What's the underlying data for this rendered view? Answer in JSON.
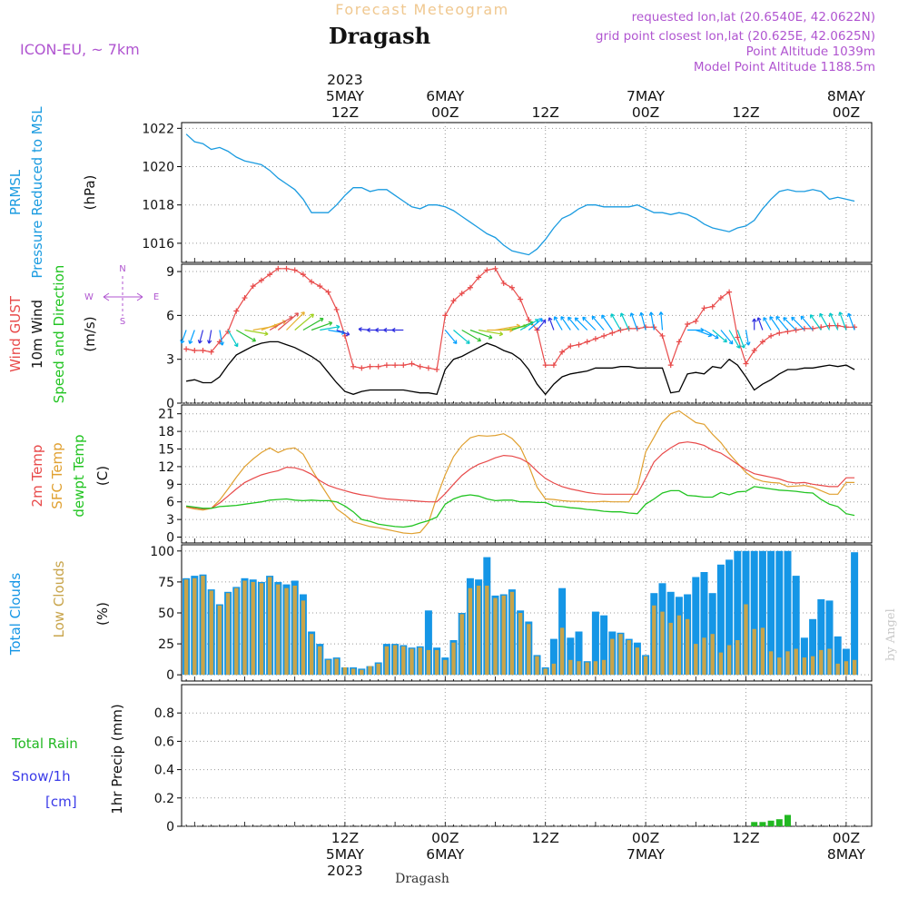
{
  "header": {
    "subtitle": "Forecast Meteogram",
    "location": "Dragash",
    "model": "ICON-EU, ~ 7km",
    "info": [
      "requested lon,lat (20.6540E, 42.0622N)",
      "grid point closest lon,lat (20.625E, 42.0625N)",
      "Point Altitude 1039m",
      "Model Point Altitude 1188.5m"
    ],
    "bottom_name": "Dragash",
    "watermark": "by Angel"
  },
  "colors": {
    "pressure": "#1a9be0",
    "gust": "#e84a4a",
    "wind10": "#000000",
    "dir": "#22c422",
    "t2m": "#e84a4a",
    "sfc": "#e0a030",
    "dew": "#22c422",
    "total_clouds": "#1596e6",
    "low_clouds": "#c8a44a",
    "rain": "#22b822",
    "snow": "#3a3ae8",
    "info": "#b055d0",
    "model": "#b055d0",
    "subtitle": "#f0c890"
  },
  "top_time_labels": [
    {
      "idx": 19,
      "lines": [
        "2023",
        "5MAY",
        "12Z"
      ]
    },
    {
      "idx": 31,
      "lines": [
        "6MAY",
        "00Z"
      ]
    },
    {
      "idx": 43,
      "lines": [
        "12Z"
      ]
    },
    {
      "idx": 55,
      "lines": [
        "7MAY",
        "00Z"
      ]
    },
    {
      "idx": 67,
      "lines": [
        "12Z"
      ]
    },
    {
      "idx": 79,
      "lines": [
        "8MAY",
        "00Z"
      ]
    }
  ],
  "bottom_time_labels": [
    {
      "idx": 19,
      "lines": [
        "12Z",
        "5MAY",
        "2023"
      ]
    },
    {
      "idx": 31,
      "lines": [
        "00Z",
        "6MAY"
      ]
    },
    {
      "idx": 43,
      "lines": [
        "12Z"
      ]
    },
    {
      "idx": 55,
      "lines": [
        "00Z",
        "7MAY"
      ]
    },
    {
      "idx": 67,
      "lines": [
        "12Z"
      ]
    },
    {
      "idx": 79,
      "lines": [
        "00Z",
        "8MAY"
      ]
    }
  ],
  "chart_data": [
    {
      "type": "line",
      "panel": "pressure",
      "left_labels": [
        "PRMSL",
        "Pressure Reduced to MSL"
      ],
      "unit": "(hPa)",
      "ylim": [
        1015,
        1022.3
      ],
      "yticks": [
        1016,
        1018,
        1020,
        1022
      ],
      "x_hours_start": 0,
      "series": [
        {
          "values": [
            1021.7,
            1021.3,
            1021.2,
            1020.9,
            1021.0,
            1020.8,
            1020.5,
            1020.3,
            1020.2,
            1020.1,
            1019.8,
            1019.4,
            1019.1,
            1018.8,
            1018.3,
            1017.6,
            1017.6,
            1017.6,
            1018.0,
            1018.5,
            1018.9,
            1018.9,
            1018.7,
            1018.8,
            1018.8,
            1018.5,
            1018.2,
            1017.9,
            1017.8,
            1018.0,
            1018.0,
            1017.9,
            1017.7,
            1017.4,
            1017.1,
            1016.8,
            1016.5,
            1016.3,
            1015.9,
            1015.6,
            1015.5,
            1015.4,
            1015.7,
            1016.2,
            1016.8,
            1017.3,
            1017.5,
            1017.8,
            1018.0,
            1018.0,
            1017.9,
            1017.9,
            1017.9,
            1017.9,
            1018.0,
            1017.8,
            1017.6,
            1017.6,
            1017.5,
            1017.6,
            1017.5,
            1017.3,
            1017.0,
            1016.8,
            1016.7,
            1016.6,
            1016.8,
            1016.9,
            1017.2,
            1017.8,
            1018.3,
            1018.7,
            1018.8,
            1018.7,
            1018.7,
            1018.8,
            1018.7,
            1018.3,
            1018.4,
            1018.3,
            1018.2
          ]
        }
      ]
    },
    {
      "type": "line",
      "panel": "wind",
      "left_labels": [
        "Wind GUST",
        "10m Wind",
        "Speed and Direction"
      ],
      "unit": "(m/s)",
      "compass": {
        "n": "N",
        "w": "W",
        "e": "E",
        "s": "S"
      },
      "ylim": [
        0,
        9.5
      ],
      "yticks": [
        0,
        3,
        6,
        9
      ],
      "series": [
        {
          "name": "gust",
          "values": [
            3.7,
            3.6,
            3.6,
            3.5,
            4.2,
            4.9,
            6.3,
            7.2,
            8.0,
            8.4,
            8.8,
            9.2,
            9.2,
            9.1,
            8.8,
            8.3,
            8.0,
            7.6,
            6.4,
            4.6,
            2.5,
            2.4,
            2.5,
            2.5,
            2.6,
            2.6,
            2.6,
            2.7,
            2.5,
            2.4,
            2.3,
            6.0,
            7.0,
            7.5,
            7.9,
            8.6,
            9.1,
            9.2,
            8.2,
            7.9,
            7.1,
            5.7,
            5.0,
            2.6,
            2.6,
            3.5,
            3.9,
            4.0,
            4.2,
            4.4,
            4.6,
            4.8,
            5.0,
            5.1,
            5.1,
            5.2,
            5.2,
            4.6,
            2.6,
            4.2,
            5.4,
            5.6,
            6.5,
            6.6,
            7.2,
            7.6,
            4.5,
            2.7,
            3.6,
            4.2,
            4.6,
            4.8,
            4.9,
            5.0,
            5.1,
            5.1,
            5.2,
            5.3,
            5.3,
            5.2,
            5.2
          ]
        },
        {
          "name": "wind10",
          "values": [
            1.5,
            1.6,
            1.4,
            1.4,
            1.8,
            2.6,
            3.3,
            3.6,
            3.9,
            4.1,
            4.2,
            4.2,
            4.0,
            3.8,
            3.5,
            3.2,
            2.8,
            2.1,
            1.4,
            0.8,
            0.6,
            0.8,
            0.9,
            0.9,
            0.9,
            0.9,
            0.9,
            0.8,
            0.7,
            0.7,
            0.6,
            2.3,
            3.0,
            3.2,
            3.5,
            3.8,
            4.1,
            3.9,
            3.6,
            3.4,
            3.0,
            2.3,
            1.3,
            0.6,
            1.3,
            1.8,
            2.0,
            2.1,
            2.2,
            2.4,
            2.4,
            2.4,
            2.5,
            2.5,
            2.4,
            2.4,
            2.4,
            2.4,
            0.7,
            0.8,
            2.0,
            2.1,
            2.0,
            2.5,
            2.4,
            3.0,
            2.6,
            1.8,
            0.9,
            1.3,
            1.6,
            2.0,
            2.3,
            2.3,
            2.4,
            2.4,
            2.5,
            2.6,
            2.5,
            2.6,
            2.3
          ]
        },
        {
          "name": "direction_deg",
          "values": [
            200,
            200,
            195,
            190,
            170,
            150,
            120,
            100,
            80,
            70,
            60,
            50,
            45,
            50,
            60,
            70,
            80,
            100,
            110,
            0,
            0,
            280,
            275,
            270,
            270,
            270,
            270,
            270,
            275,
            280,
            0,
            140,
            130,
            120,
            110,
            100,
            90,
            80,
            80,
            70,
            60,
            50,
            40,
            350,
            340,
            330,
            325,
            320,
            315,
            315,
            320,
            325,
            330,
            335,
            340,
            345,
            350,
            355,
            0,
            30,
            90,
            110,
            120,
            130,
            140,
            150,
            160,
            170,
            0,
            340,
            330,
            325,
            320,
            315,
            315,
            320,
            325,
            330,
            335,
            340,
            340
          ]
        }
      ]
    },
    {
      "type": "line",
      "panel": "temperature",
      "left_labels": [
        "2m Temp",
        "SFC Temp",
        "dewpt Temp"
      ],
      "unit": "(C)",
      "ylim": [
        -1,
        22.5
      ],
      "yticks": [
        0,
        3,
        6,
        9,
        12,
        15,
        18,
        21
      ],
      "series": [
        {
          "name": "2m Temp",
          "values": [
            5.2,
            5.0,
            4.8,
            4.9,
            5.8,
            7.0,
            8.2,
            9.3,
            10.0,
            10.6,
            11.0,
            11.3,
            11.9,
            11.8,
            11.4,
            10.7,
            9.6,
            8.8,
            8.3,
            7.9,
            7.5,
            7.2,
            7.0,
            6.7,
            6.5,
            6.4,
            6.3,
            6.2,
            6.1,
            6.0,
            6.0,
            7.4,
            9.0,
            10.5,
            11.6,
            12.4,
            12.9,
            13.5,
            13.9,
            13.8,
            13.4,
            12.6,
            11.2,
            10.0,
            9.2,
            8.6,
            8.2,
            7.9,
            7.6,
            7.4,
            7.3,
            7.3,
            7.3,
            7.3,
            7.3,
            10.0,
            12.8,
            14.2,
            15.2,
            16.0,
            16.2,
            16.0,
            15.6,
            14.8,
            14.3,
            13.4,
            12.4,
            11.5,
            10.8,
            10.5,
            10.2,
            9.9,
            9.4,
            9.2,
            9.3,
            9.0,
            8.8,
            8.6,
            8.6,
            10.1,
            10.1
          ]
        },
        {
          "name": "SFC Temp",
          "values": [
            5.1,
            4.8,
            4.6,
            4.9,
            6.3,
            8.2,
            10.2,
            12.0,
            13.3,
            14.4,
            15.2,
            14.4,
            15.0,
            15.2,
            14.1,
            11.6,
            9.2,
            7.0,
            4.8,
            3.8,
            2.6,
            2.2,
            1.8,
            1.6,
            1.3,
            1.0,
            0.7,
            0.6,
            0.8,
            2.5,
            6.8,
            10.6,
            13.7,
            15.6,
            16.9,
            17.3,
            17.2,
            17.3,
            17.6,
            16.8,
            15.3,
            12.2,
            8.5,
            6.5,
            6.4,
            6.2,
            6.1,
            6.1,
            6.0,
            6.0,
            6.1,
            6.0,
            6.0,
            6.0,
            8.4,
            14.5,
            17.0,
            19.6,
            21.0,
            21.5,
            20.5,
            19.5,
            19.2,
            17.5,
            16.1,
            14.2,
            12.6,
            11.0,
            10.0,
            9.5,
            9.3,
            9.2,
            8.6,
            8.7,
            8.8,
            8.5,
            7.9,
            7.3,
            7.3,
            9.3,
            9.3
          ]
        },
        {
          "name": "dewpt Temp",
          "values": [
            5.3,
            5.1,
            4.9,
            4.9,
            5.2,
            5.3,
            5.4,
            5.6,
            5.8,
            6.0,
            6.3,
            6.4,
            6.5,
            6.3,
            6.2,
            6.3,
            6.2,
            6.2,
            6.0,
            5.3,
            4.3,
            3.0,
            2.7,
            2.2,
            2.0,
            1.8,
            1.7,
            1.9,
            2.4,
            2.8,
            3.4,
            5.6,
            6.5,
            7.0,
            7.2,
            7.0,
            6.5,
            6.2,
            6.3,
            6.3,
            6.0,
            6.0,
            5.9,
            5.9,
            5.3,
            5.2,
            5.0,
            4.9,
            4.7,
            4.6,
            4.4,
            4.3,
            4.3,
            4.1,
            4.0,
            5.6,
            6.5,
            7.5,
            7.9,
            7.9,
            7.1,
            7.0,
            6.8,
            6.8,
            7.6,
            7.2,
            7.7,
            7.8,
            8.6,
            8.4,
            8.2,
            8.0,
            7.9,
            7.8,
            7.6,
            7.5,
            6.4,
            5.6,
            5.2,
            4.0,
            3.7
          ]
        }
      ]
    },
    {
      "type": "bar",
      "panel": "clouds",
      "left_labels": [
        "Total Clouds",
        "Low Clouds"
      ],
      "unit": "(%)",
      "ylim": [
        -5,
        105
      ],
      "yticks": [
        0,
        25,
        50,
        75,
        100
      ],
      "series": [
        {
          "name": "Total Clouds",
          "values": [
            78,
            80,
            81,
            69,
            57,
            67,
            71,
            78,
            77,
            75,
            80,
            75,
            73,
            76,
            65,
            35,
            25,
            13,
            14,
            6,
            6,
            5,
            7,
            10,
            25,
            25,
            24,
            22,
            23,
            52,
            22,
            14,
            28,
            50,
            78,
            77,
            95,
            64,
            65,
            69,
            52,
            43,
            16,
            6,
            29,
            70,
            30,
            35,
            11,
            51,
            48,
            35,
            34,
            29,
            26,
            16,
            66,
            74,
            67,
            63,
            65,
            79,
            83,
            66,
            89,
            93,
            100,
            100,
            100,
            100,
            100,
            100,
            100,
            80,
            30,
            45,
            61,
            60,
            31,
            21,
            99
          ]
        },
        {
          "name": "Low Clouds",
          "values": [
            77,
            78,
            80,
            68,
            56,
            66,
            70,
            76,
            75,
            74,
            79,
            73,
            70,
            72,
            60,
            33,
            23,
            12,
            13,
            6,
            5,
            4,
            7,
            9,
            23,
            24,
            23,
            21,
            22,
            20,
            20,
            12,
            26,
            49,
            70,
            72,
            72,
            62,
            64,
            67,
            50,
            41,
            15,
            5,
            9,
            38,
            12,
            11,
            10,
            11,
            12,
            29,
            33,
            28,
            22,
            15,
            56,
            51,
            42,
            48,
            45,
            25,
            30,
            33,
            18,
            24,
            28,
            57,
            37,
            38,
            19,
            14,
            19,
            21,
            14,
            15,
            20,
            21,
            9,
            11,
            12
          ]
        }
      ]
    },
    {
      "type": "bar",
      "panel": "precip",
      "left_labels": [
        "Total  Rain",
        "Snow/1h",
        "[cm]"
      ],
      "unit": "1hr Precip (mm)",
      "ylim": [
        0,
        1.0
      ],
      "yticks": [
        0,
        0.2,
        0.4,
        0.6,
        0.8
      ],
      "series": [
        {
          "name": "Total Rain",
          "values": [
            0,
            0,
            0,
            0,
            0,
            0,
            0,
            0,
            0,
            0,
            0,
            0,
            0,
            0,
            0,
            0,
            0,
            0,
            0,
            0,
            0,
            0,
            0,
            0,
            0,
            0,
            0,
            0,
            0,
            0,
            0,
            0,
            0,
            0,
            0,
            0,
            0,
            0,
            0,
            0,
            0,
            0,
            0,
            0,
            0,
            0,
            0,
            0,
            0,
            0,
            0,
            0,
            0,
            0,
            0,
            0,
            0,
            0,
            0,
            0,
            0,
            0,
            0,
            0,
            0,
            0,
            0,
            0,
            0.03,
            0.03,
            0.04,
            0.05,
            0.08,
            0,
            0,
            0,
            0,
            0,
            0,
            0,
            0
          ]
        }
      ]
    }
  ]
}
